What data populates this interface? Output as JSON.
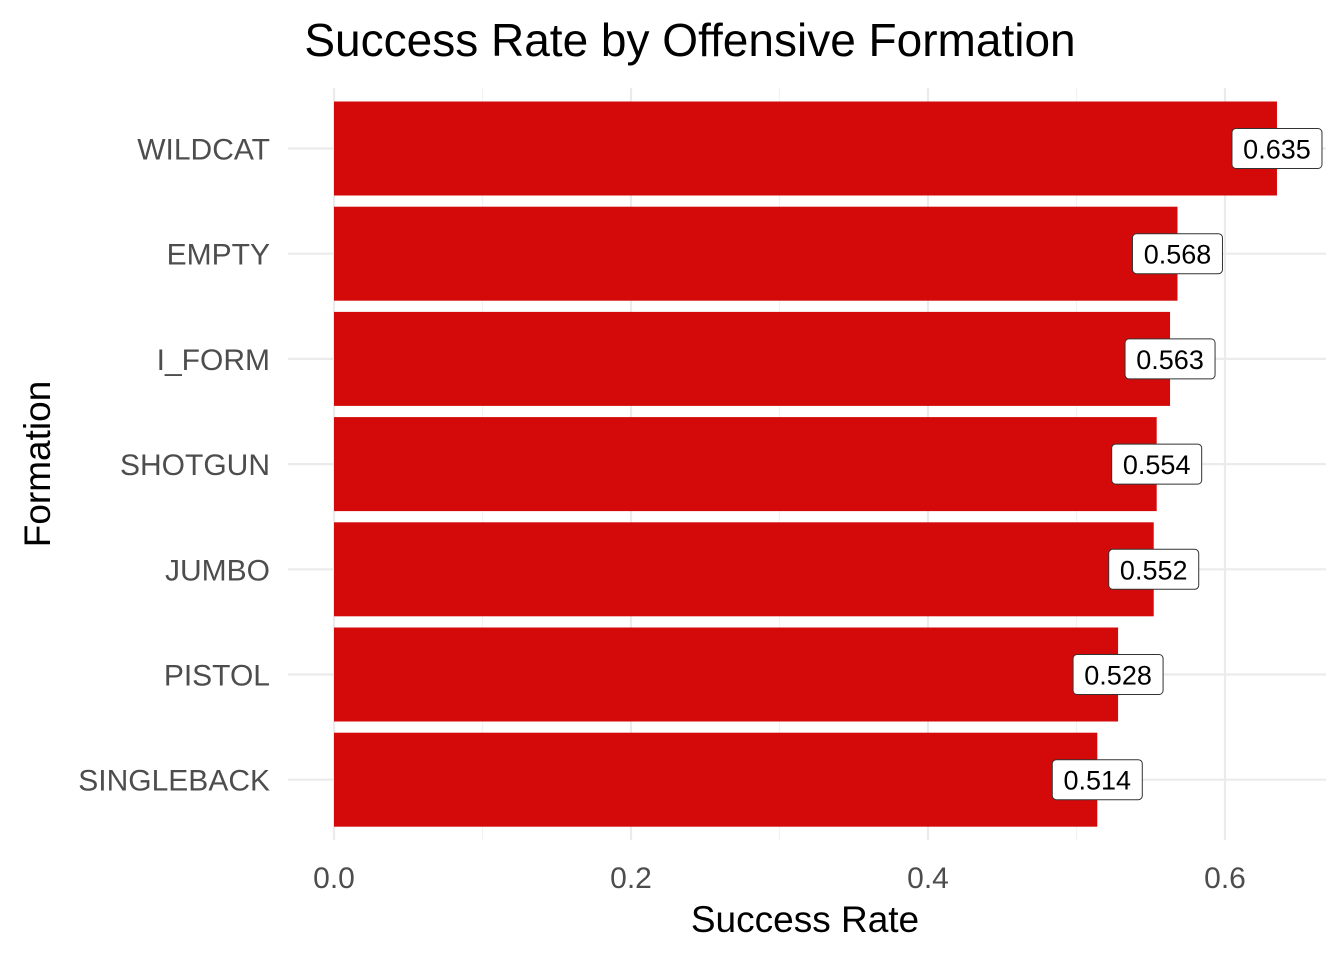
{
  "chart_data": {
    "type": "bar",
    "orientation": "horizontal",
    "title": "Success Rate by Offensive Formation",
    "xlabel": "Success Rate",
    "ylabel": "Formation",
    "categories": [
      "WILDCAT",
      "EMPTY",
      "I_FORM",
      "SHOTGUN",
      "JUMBO",
      "PISTOL",
      "SINGLEBACK"
    ],
    "values": [
      0.635,
      0.568,
      0.563,
      0.554,
      0.552,
      0.528,
      0.514
    ],
    "data_labels": [
      "0.635",
      "0.568",
      "0.563",
      "0.554",
      "0.552",
      "0.528",
      "0.514"
    ],
    "xlim": [
      0,
      0.6667
    ],
    "x_ticks": [
      0.0,
      0.2,
      0.4,
      0.6
    ],
    "x_tick_labels": [
      "0.0",
      "0.2",
      "0.4",
      "0.6"
    ],
    "grid": true,
    "legend": "none",
    "bar_color": "#d40a0a"
  }
}
